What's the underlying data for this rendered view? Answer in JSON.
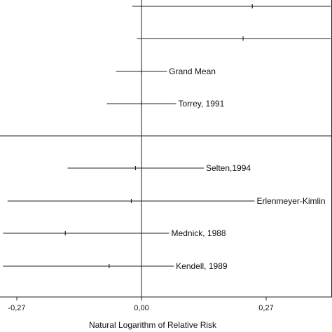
{
  "chart_data": {
    "type": "forest",
    "xlabel": "Natural Logarithm of Relative Risk",
    "xlim": [
      -0.3,
      0.41
    ],
    "xticks": [
      {
        "value": -0.27,
        "label": "-0,27"
      },
      {
        "value": 0.0,
        "label": "0,00"
      },
      {
        "value": 0.27,
        "label": "0,27"
      }
    ],
    "reference_line": 0.0,
    "separator_after_row": 3,
    "rows": [
      {
        "label": "",
        "estimate": 0.24,
        "ci_low": -0.02,
        "ci_high": 0.41
      },
      {
        "label": "",
        "estimate": 0.22,
        "ci_low": -0.01,
        "ci_high": 0.41
      },
      {
        "label": "Grand Mean",
        "estimate": 0.0,
        "ci_low": -0.055,
        "ci_high": 0.055
      },
      {
        "label": "Torrey, 1991",
        "estimate": 0.0,
        "ci_low": -0.075,
        "ci_high": 0.075
      },
      {
        "label": "Selten,1994",
        "estimate": -0.013,
        "ci_low": -0.16,
        "ci_high": 0.135
      },
      {
        "label": "Erlenmeyer-Kimlin",
        "estimate": -0.022,
        "ci_low": -0.29,
        "ci_high": 0.245
      },
      {
        "label": "Mednick, 1988",
        "estimate": -0.165,
        "ci_low": -0.3,
        "ci_high": 0.06
      },
      {
        "label": "Kendell, 1989",
        "estimate": -0.07,
        "ci_low": -0.3,
        "ci_high": 0.07
      }
    ]
  }
}
